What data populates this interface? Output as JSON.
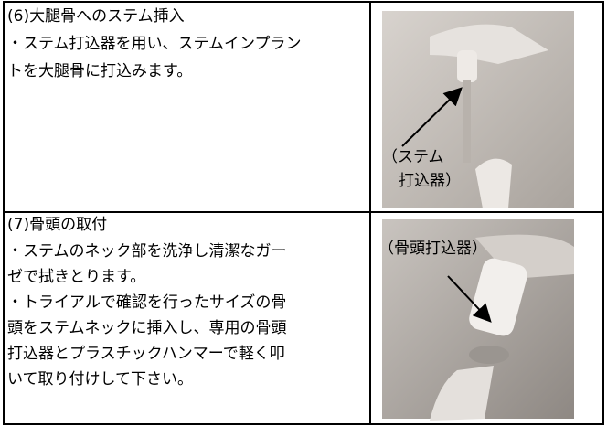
{
  "table": {
    "rows": [
      {
        "heading": "(6)大腿骨へのステム挿入",
        "lines": [
          "・ステム打込器を用い、ステムインプラン",
          "トを大腿骨に打込みます。"
        ],
        "photo_label": [
          "（ステム",
          "打込器）"
        ]
      },
      {
        "heading": "(7)骨頭の取付",
        "lines": [
          "・ステムのネック部を洗浄し清潔なガー",
          "ゼで拭きとります。",
          "・トライアルで確認を行ったサイズの骨",
          "頭をステムネックに挿入し、専用の骨頭",
          "打込器とプラスチックハンマーで軽く叩",
          "いて取り付けして下さい。"
        ],
        "photo_label": [
          "（骨頭打込器）"
        ]
      }
    ]
  }
}
